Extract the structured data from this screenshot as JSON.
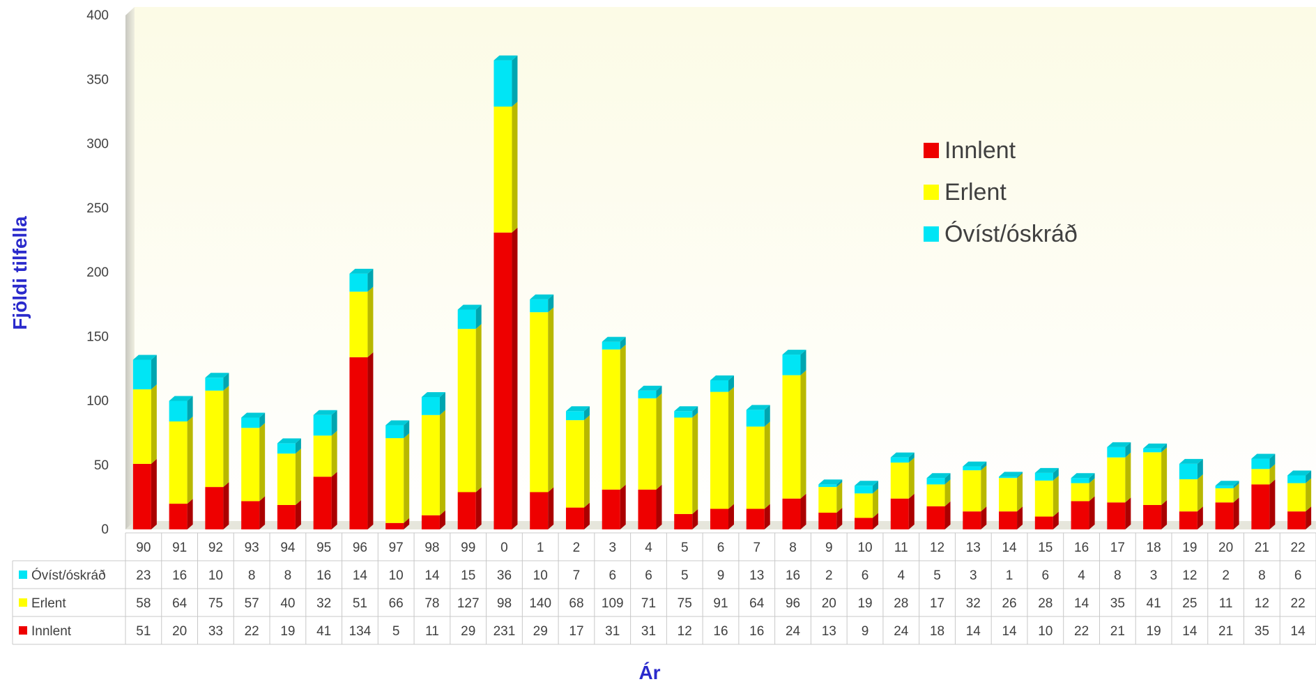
{
  "chart_data": {
    "type": "bar",
    "stacked": true,
    "xlabel": "Ár",
    "ylabel": "Fjöldi tilfella",
    "ylim": [
      0,
      400
    ],
    "yticks": [
      0,
      50,
      100,
      150,
      200,
      250,
      300,
      350,
      400
    ],
    "categories": [
      "90",
      "91",
      "92",
      "93",
      "94",
      "95",
      "96",
      "97",
      "98",
      "99",
      "0",
      "1",
      "2",
      "3",
      "4",
      "5",
      "6",
      "7",
      "8",
      "9",
      "10",
      "11",
      "12",
      "13",
      "14",
      "15",
      "16",
      "17",
      "18",
      "19",
      "20",
      "21",
      "22"
    ],
    "series": [
      {
        "name": "Innlent",
        "color": "#ee0000",
        "values": [
          51,
          20,
          33,
          22,
          19,
          41,
          134,
          5,
          11,
          29,
          231,
          29,
          17,
          31,
          31,
          12,
          16,
          16,
          24,
          13,
          9,
          24,
          18,
          14,
          14,
          10,
          22,
          21,
          19,
          14,
          21,
          35,
          14
        ]
      },
      {
        "name": "Erlent",
        "color": "#ffff00",
        "values": [
          58,
          64,
          75,
          57,
          40,
          32,
          51,
          66,
          78,
          127,
          98,
          140,
          68,
          109,
          71,
          75,
          91,
          64,
          96,
          20,
          19,
          28,
          17,
          32,
          26,
          28,
          14,
          35,
          41,
          25,
          11,
          12,
          22
        ]
      },
      {
        "name": "Óvíst/óskráð",
        "color": "#00e5f5",
        "values": [
          23,
          16,
          10,
          8,
          8,
          16,
          14,
          10,
          14,
          15,
          36,
          10,
          7,
          6,
          6,
          5,
          9,
          13,
          16,
          2,
          6,
          4,
          5,
          3,
          1,
          6,
          4,
          8,
          3,
          12,
          2,
          8,
          6
        ]
      }
    ],
    "legend": {
      "position": "right",
      "entries": [
        "Innlent",
        "Erlent",
        "Óvíst/óskráð"
      ]
    },
    "data_table": {
      "row_order": [
        "Óvíst/óskráð",
        "Erlent",
        "Innlent"
      ]
    },
    "grid": false
  }
}
